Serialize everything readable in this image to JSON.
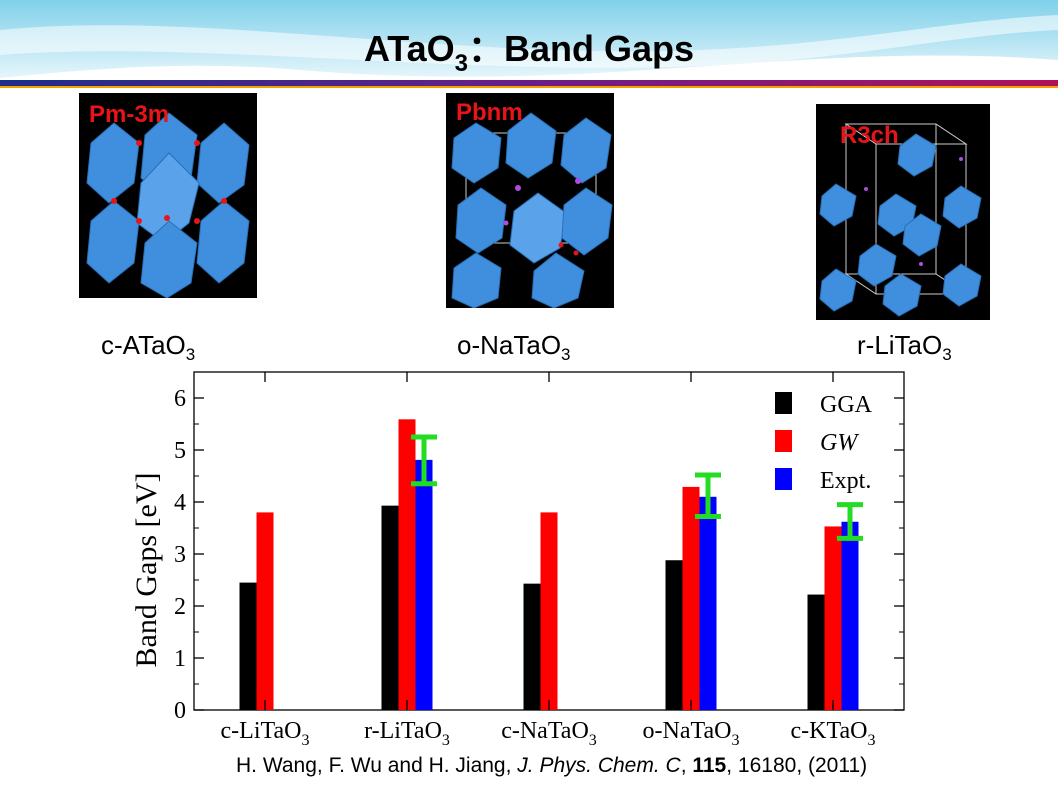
{
  "slide": {
    "title_main": "ATaO",
    "title_sub": "3",
    "title_rest": "：Band Gaps"
  },
  "structures": [
    {
      "space_group": "Pm-3m",
      "label": "c-ATaO",
      "label_sub": "3"
    },
    {
      "space_group": "Pbnm",
      "label": "o-NaTaO",
      "label_sub": "3"
    },
    {
      "space_group": "R3ch",
      "label": "r-LiTaO",
      "label_sub": "3"
    }
  ],
  "citation": {
    "authors": "H. Wang, F. Wu and H. Jiang, ",
    "journal": "J. Phys. Chem. C",
    "sep1": ", ",
    "volume": "115",
    "rest": ", 16180, (2011)"
  },
  "colors": {
    "GGA": "#000000",
    "GW": "#ff0000",
    "Expt": "#0000ff",
    "error_bar": "#22dd22"
  },
  "chart_data": {
    "type": "bar",
    "ylabel": "Band Gaps  [eV]",
    "ylim": [
      0,
      6.5
    ],
    "yticks": [
      0,
      1,
      2,
      3,
      4,
      5,
      6
    ],
    "categories": [
      {
        "main": "c-LiTaO",
        "sub": "3"
      },
      {
        "main": "r-LiTaO",
        "sub": "3"
      },
      {
        "main": "c-NaTaO",
        "sub": "3"
      },
      {
        "main": "o-NaTaO",
        "sub": "3"
      },
      {
        "main": "c-KTaO",
        "sub": "3"
      }
    ],
    "series": [
      {
        "name": "GGA",
        "values": [
          2.45,
          3.93,
          2.43,
          2.88,
          2.22
        ]
      },
      {
        "name": "GW",
        "values": [
          3.8,
          5.59,
          3.8,
          4.29,
          3.53
        ]
      },
      {
        "name": "Expt.",
        "values": [
          null,
          4.81,
          null,
          4.1,
          3.62
        ]
      }
    ],
    "error_bars": [
      null,
      {
        "low": 4.35,
        "high": 5.25
      },
      null,
      {
        "low": 3.72,
        "high": 4.52
      },
      {
        "low": 3.3,
        "high": 3.95
      }
    ],
    "legend_position": "top-right",
    "grid": false
  }
}
